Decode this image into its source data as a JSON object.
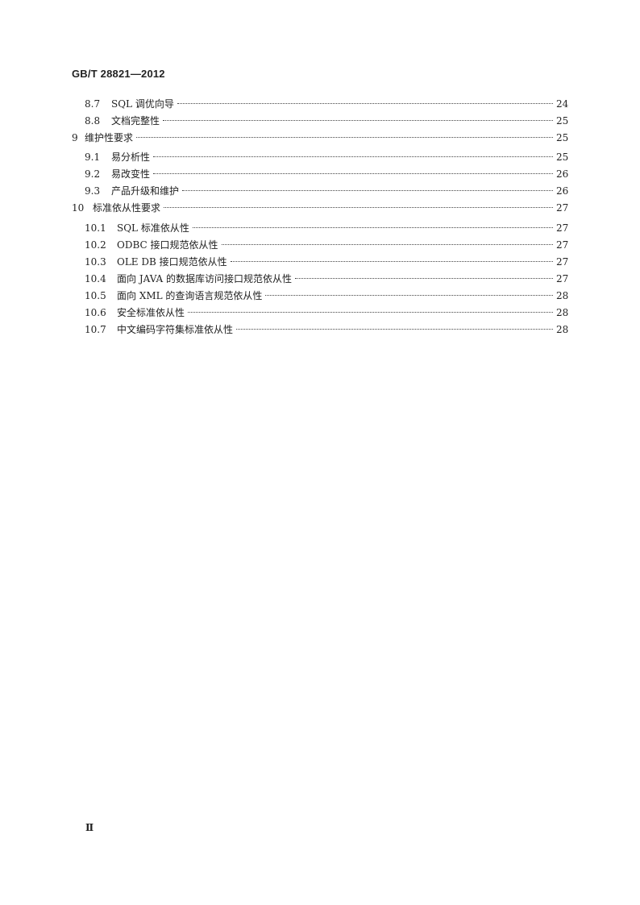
{
  "header": {
    "standard_code": "GB/T 28821—2012"
  },
  "toc": [
    {
      "num": "8.7",
      "title": "SQL 调优向导",
      "page": "24",
      "level": 2
    },
    {
      "num": "8.8",
      "title": "文档完整性",
      "page": "25",
      "level": 2
    },
    {
      "num": "9",
      "title": "维护性要求",
      "page": "25",
      "level": 1
    },
    {
      "num": "9.1",
      "title": "易分析性",
      "page": "25",
      "level": 2
    },
    {
      "num": "9.2",
      "title": "易改变性",
      "page": "26",
      "level": 2
    },
    {
      "num": "9.3",
      "title": "产品升级和维护",
      "page": "26",
      "level": 2
    },
    {
      "num": "10",
      "title": "标准依从性要求",
      "page": "27",
      "level": 1
    },
    {
      "num": "10.1",
      "title": "SQL 标准依从性",
      "page": "27",
      "level": 2
    },
    {
      "num": "10.2",
      "title": "ODBC 接口规范依从性",
      "page": "27",
      "level": 2
    },
    {
      "num": "10.3",
      "title": "OLE DB 接口规范依从性",
      "page": "27",
      "level": 2
    },
    {
      "num": "10.4",
      "title": "面向 JAVA 的数据库访问接口规范依从性",
      "page": "27",
      "level": 2
    },
    {
      "num": "10.5",
      "title": "面向 XML 的查询语言规范依从性",
      "page": "28",
      "level": 2
    },
    {
      "num": "10.6",
      "title": "安全标准依从性",
      "page": "28",
      "level": 2
    },
    {
      "num": "10.7",
      "title": "中文编码字符集标准依从性",
      "page": "28",
      "level": 2
    }
  ],
  "footer": {
    "page_number": "Ⅱ"
  }
}
